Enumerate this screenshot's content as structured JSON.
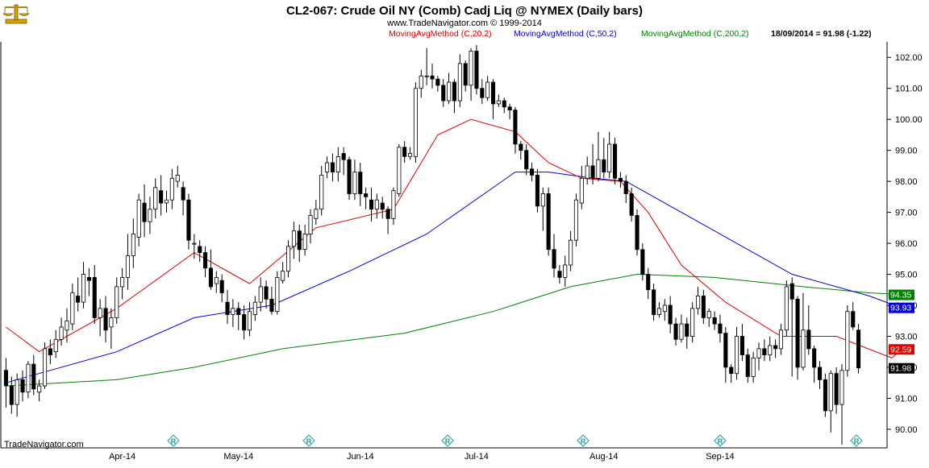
{
  "header": {
    "title": "CL2-067:  Crude Oil NY (Comb) Cadj Liq @ NYMEX  (Daily bars)",
    "copyright": "www.TradeNavigator.com © 1999-2014",
    "indicator_labels": [
      {
        "text": "MovingAvgMethod (C,20,2)",
        "color": "#e00000"
      },
      {
        "text": "MovingAvgMethod (C,50,2)",
        "color": "#0000e0"
      },
      {
        "text": "MovingAvgMethod (C,200,2)",
        "color": "#008000"
      }
    ],
    "last_value": "18/09/2014 = 91.98 (-1.22)"
  },
  "footer": {
    "brand": "TradeNavigator.com"
  },
  "icons": {
    "logo": "golden-scale-icon",
    "event_marker": "r-diamond-icon"
  },
  "chart_data": {
    "type": "candlestick",
    "ylim": [
      89.4,
      102.5
    ],
    "y_ticks": [
      "90.00",
      "91.00",
      "92.00",
      "93.00",
      "94.00",
      "95.00",
      "96.00",
      "97.00",
      "98.00",
      "99.00",
      "100.00",
      "101.00",
      "102.00"
    ],
    "x_labels": [
      "Apr-14",
      "May-14",
      "Jun-14",
      "Jul-14",
      "Aug-14",
      "Sep-14"
    ],
    "last_labels": [
      {
        "text": "94.35",
        "value": 94.35,
        "color": "#008000"
      },
      {
        "text": "93.93",
        "value": 93.93,
        "color": "#0000e0"
      },
      {
        "text": "92.59",
        "value": 92.59,
        "color": "#e00000"
      },
      {
        "text": "91.98",
        "value": 91.98,
        "color": "#000000"
      }
    ],
    "candles": [
      [
        91.9,
        91.4,
        92.3,
        90.7
      ],
      [
        91.4,
        90.8,
        91.7,
        90.5
      ],
      [
        90.8,
        91.6,
        91.8,
        90.4
      ],
      [
        91.6,
        91.2,
        91.9,
        90.9
      ],
      [
        91.2,
        92.1,
        92.2,
        91.0
      ],
      [
        92.1,
        91.3,
        92.4,
        91.1
      ],
      [
        91.2,
        91.4,
        91.6,
        90.9
      ],
      [
        91.4,
        92.6,
        92.8,
        91.3
      ],
      [
        92.6,
        92.4,
        92.9,
        92.1
      ],
      [
        92.5,
        92.9,
        93.2,
        92.3
      ],
      [
        92.9,
        93.3,
        93.6,
        92.7
      ],
      [
        93.2,
        93.5,
        93.9,
        92.8
      ],
      [
        93.4,
        94.4,
        94.7,
        93.2
      ],
      [
        94.3,
        94.1,
        94.9,
        93.8
      ],
      [
        94.1,
        95.0,
        95.4,
        93.9
      ],
      [
        94.9,
        94.8,
        95.2,
        94.3
      ],
      [
        94.9,
        93.6,
        95.3,
        93.4
      ],
      [
        93.6,
        93.9,
        94.2,
        93.0
      ],
      [
        93.9,
        93.2,
        94.3,
        92.8
      ],
      [
        93.3,
        93.6,
        93.9,
        92.6
      ],
      [
        93.6,
        94.6,
        94.9,
        93.4
      ],
      [
        94.6,
        94.9,
        95.2,
        94.2
      ],
      [
        94.9,
        95.6,
        96.3,
        94.5
      ],
      [
        95.6,
        96.3,
        96.8,
        95.2
      ],
      [
        96.2,
        97.4,
        97.6,
        95.9
      ],
      [
        97.3,
        96.7,
        97.9,
        96.2
      ],
      [
        96.7,
        97.1,
        97.5,
        96.3
      ],
      [
        97.1,
        97.8,
        98.1,
        96.8
      ],
      [
        97.7,
        97.3,
        98.2,
        96.9
      ],
      [
        97.3,
        97.4,
        97.7,
        97.0
      ],
      [
        97.4,
        98.1,
        98.4,
        97.1
      ],
      [
        98.0,
        98.2,
        98.5,
        97.8
      ],
      [
        97.8,
        97.4,
        98.0,
        96.9
      ],
      [
        97.4,
        96.1,
        97.6,
        95.8
      ],
      [
        96.0,
        96.0,
        96.3,
        95.5
      ],
      [
        95.9,
        95.7,
        96.1,
        95.4
      ],
      [
        95.7,
        95.2,
        95.9,
        94.9
      ],
      [
        95.2,
        94.6,
        95.8,
        94.5
      ],
      [
        94.7,
        94.9,
        95.1,
        94.4
      ],
      [
        94.8,
        94.4,
        95.0,
        94.1
      ],
      [
        94.1,
        93.7,
        94.5,
        93.4
      ],
      [
        93.7,
        93.9,
        94.2,
        93.3
      ],
      [
        93.9,
        93.7,
        94.1,
        93.2
      ],
      [
        93.7,
        93.2,
        94.0,
        92.9
      ],
      [
        93.2,
        93.8,
        94.1,
        93.0
      ],
      [
        93.7,
        94.1,
        94.3,
        93.5
      ],
      [
        94.1,
        94.6,
        94.9,
        93.8
      ],
      [
        94.6,
        94.2,
        94.8,
        93.9
      ],
      [
        94.2,
        93.8,
        94.6,
        93.7
      ],
      [
        93.8,
        94.9,
        95.1,
        93.7
      ],
      [
        94.8,
        95.1,
        95.4,
        94.7
      ],
      [
        95.1,
        95.9,
        96.1,
        94.9
      ],
      [
        95.9,
        96.4,
        96.7,
        95.5
      ],
      [
        96.4,
        95.8,
        96.6,
        95.4
      ],
      [
        95.8,
        96.3,
        96.6,
        95.6
      ],
      [
        96.3,
        96.9,
        97.1,
        96.0
      ],
      [
        96.8,
        97.1,
        97.4,
        96.6
      ],
      [
        97.1,
        98.2,
        98.5,
        96.9
      ],
      [
        98.3,
        98.6,
        98.8,
        98.1
      ],
      [
        98.6,
        98.3,
        98.9,
        98.0
      ],
      [
        98.3,
        98.8,
        99.1,
        98.0
      ],
      [
        98.9,
        98.7,
        99.1,
        98.2
      ],
      [
        98.7,
        97.6,
        98.8,
        97.4
      ],
      [
        97.6,
        98.3,
        98.7,
        97.4
      ],
      [
        98.3,
        97.6,
        98.6,
        97.2
      ],
      [
        97.6,
        97.5,
        97.8,
        97.1
      ],
      [
        97.4,
        97.1,
        97.8,
        96.7
      ],
      [
        97.1,
        97.4,
        97.6,
        96.8
      ],
      [
        97.3,
        97.1,
        97.5,
        96.8
      ],
      [
        97.1,
        96.8,
        97.2,
        96.3
      ],
      [
        96.8,
        97.7,
        97.8,
        96.6
      ],
      [
        97.6,
        99.1,
        99.2,
        97.5
      ],
      [
        99.1,
        98.8,
        99.3,
        98.6
      ],
      [
        98.8,
        98.9,
        99.1,
        98.7
      ],
      [
        98.8,
        101.0,
        101.2,
        98.6
      ],
      [
        101.0,
        101.4,
        101.6,
        100.7
      ],
      [
        101.4,
        101.4,
        102.3,
        101.1
      ],
      [
        101.4,
        101.3,
        101.8,
        101.0
      ],
      [
        101.3,
        101.1,
        101.4,
        100.9
      ],
      [
        101.1,
        100.6,
        101.3,
        100.4
      ],
      [
        100.6,
        101.2,
        101.5,
        100.5
      ],
      [
        101.2,
        100.6,
        101.3,
        100.2
      ],
      [
        100.6,
        101.8,
        102.1,
        100.4
      ],
      [
        101.8,
        101.1,
        101.9,
        100.9
      ],
      [
        101.1,
        102.2,
        102.3,
        100.6
      ],
      [
        102.2,
        101.0,
        102.4,
        100.8
      ],
      [
        101.0,
        100.7,
        101.3,
        100.5
      ],
      [
        100.7,
        101.2,
        101.4,
        100.6
      ],
      [
        101.2,
        100.5,
        101.3,
        100.0
      ],
      [
        100.5,
        100.6,
        100.8,
        100.4
      ],
      [
        100.6,
        100.4,
        100.7,
        100.2
      ],
      [
        100.4,
        100.3,
        100.5,
        100.0
      ],
      [
        100.3,
        99.2,
        100.4,
        98.9
      ],
      [
        99.2,
        99.0,
        99.3,
        98.7
      ],
      [
        99.0,
        98.4,
        99.2,
        98.2
      ],
      [
        98.4,
        98.2,
        98.6,
        98.0
      ],
      [
        98.2,
        97.2,
        98.4,
        97.0
      ],
      [
        97.2,
        97.6,
        97.8,
        96.4
      ],
      [
        97.6,
        95.8,
        97.8,
        95.6
      ],
      [
        95.8,
        95.2,
        96.3,
        94.9
      ],
      [
        95.1,
        94.9,
        95.3,
        94.7
      ],
      [
        94.9,
        95.3,
        95.6,
        94.6
      ],
      [
        95.3,
        96.1,
        96.4,
        95.1
      ],
      [
        96.1,
        97.4,
        97.6,
        95.9
      ],
      [
        97.3,
        98.1,
        98.5,
        97.1
      ],
      [
        98.1,
        98.5,
        98.8,
        97.9
      ],
      [
        98.5,
        98.1,
        99.2,
        97.9
      ],
      [
        98.1,
        98.7,
        99.6,
        98.0
      ],
      [
        98.7,
        98.3,
        99.4,
        98.1
      ],
      [
        98.3,
        99.2,
        99.6,
        98.1
      ],
      [
        99.2,
        98.1,
        99.4,
        97.9
      ],
      [
        98.1,
        98.0,
        98.3,
        97.8
      ],
      [
        98.0,
        97.6,
        98.2,
        97.3
      ],
      [
        97.6,
        96.9,
        97.8,
        96.7
      ],
      [
        96.9,
        95.8,
        97.1,
        95.6
      ],
      [
        95.8,
        95.0,
        96.0,
        94.8
      ],
      [
        95.0,
        94.5,
        95.2,
        94.2
      ],
      [
        94.5,
        93.7,
        94.7,
        93.5
      ],
      [
        93.7,
        93.9,
        94.1,
        93.6
      ],
      [
        93.8,
        94.0,
        94.2,
        93.5
      ],
      [
        94.0,
        93.4,
        94.3,
        93.1
      ],
      [
        93.4,
        92.9,
        93.6,
        92.7
      ],
      [
        92.9,
        93.4,
        93.7,
        92.8
      ],
      [
        93.4,
        93.0,
        93.6,
        92.6
      ],
      [
        93.0,
        93.9,
        94.1,
        92.8
      ],
      [
        93.9,
        94.3,
        94.6,
        93.7
      ],
      [
        94.3,
        93.6,
        94.5,
        93.4
      ],
      [
        93.6,
        93.8,
        93.9,
        93.3
      ],
      [
        93.6,
        93.4,
        93.8,
        93.2
      ],
      [
        93.4,
        93.1,
        93.7,
        92.8
      ],
      [
        93.1,
        92.0,
        93.3,
        91.5
      ],
      [
        92.0,
        91.8,
        92.1,
        91.5
      ],
      [
        91.8,
        93.0,
        93.3,
        91.6
      ],
      [
        93.0,
        92.4,
        93.4,
        92.2
      ],
      [
        92.4,
        91.7,
        92.6,
        91.5
      ],
      [
        91.7,
        92.3,
        92.5,
        91.5
      ],
      [
        92.3,
        92.6,
        92.8,
        91.9
      ],
      [
        92.6,
        92.4,
        92.9,
        92.2
      ],
      [
        92.4,
        92.7,
        93.0,
        92.2
      ],
      [
        92.7,
        92.6,
        92.9,
        92.3
      ],
      [
        92.6,
        93.2,
        93.4,
        92.4
      ],
      [
        93.2,
        94.6,
        94.8,
        93.0
      ],
      [
        94.7,
        94.2,
        94.9,
        91.7
      ],
      [
        94.2,
        92.0,
        94.3,
        91.6
      ],
      [
        92.0,
        93.2,
        94.4,
        91.9
      ],
      [
        93.2,
        92.6,
        94.0,
        92.4
      ],
      [
        92.6,
        92.0,
        92.7,
        91.5
      ],
      [
        92.0,
        91.6,
        92.2,
        91.3
      ],
      [
        91.6,
        90.6,
        91.8,
        90.4
      ],
      [
        90.6,
        91.8,
        91.9,
        89.9
      ],
      [
        91.8,
        90.8,
        92.0,
        90.5
      ],
      [
        90.8,
        91.9,
        92.1,
        89.5
      ],
      [
        91.9,
        93.8,
        94.0,
        91.7
      ],
      [
        93.8,
        93.3,
        94.1,
        93.2
      ],
      [
        93.2,
        91.98,
        93.4,
        91.8
      ]
    ],
    "ma20": [
      [
        0,
        93.3
      ],
      [
        6,
        92.5
      ],
      [
        20,
        93.9
      ],
      [
        34,
        95.7
      ],
      [
        44,
        94.7
      ],
      [
        56,
        96.5
      ],
      [
        70,
        97.1
      ],
      [
        78,
        99.5
      ],
      [
        84,
        100.0
      ],
      [
        92,
        99.6
      ],
      [
        98,
        98.6
      ],
      [
        104,
        98.1
      ],
      [
        111,
        98.0
      ],
      [
        116,
        97.0
      ],
      [
        122,
        95.3
      ],
      [
        130,
        94.1
      ],
      [
        140,
        93.0
      ],
      [
        150,
        93.0
      ],
      [
        160,
        92.3
      ],
      [
        162,
        92.6
      ]
    ],
    "ma50": [
      [
        0,
        91.5
      ],
      [
        20,
        92.5
      ],
      [
        34,
        93.6
      ],
      [
        48,
        94.0
      ],
      [
        62,
        95.1
      ],
      [
        76,
        96.3
      ],
      [
        92,
        98.3
      ],
      [
        98,
        98.3
      ],
      [
        106,
        98.1
      ],
      [
        112,
        98.0
      ],
      [
        122,
        97.0
      ],
      [
        142,
        95.0
      ],
      [
        156,
        94.3
      ],
      [
        162,
        93.9
      ]
    ],
    "ma200": [
      [
        0,
        91.4
      ],
      [
        20,
        91.6
      ],
      [
        34,
        92.0
      ],
      [
        50,
        92.6
      ],
      [
        72,
        93.1
      ],
      [
        88,
        93.8
      ],
      [
        102,
        94.6
      ],
      [
        114,
        95.0
      ],
      [
        128,
        94.9
      ],
      [
        144,
        94.6
      ],
      [
        156,
        94.4
      ],
      [
        162,
        94.35
      ]
    ]
  }
}
